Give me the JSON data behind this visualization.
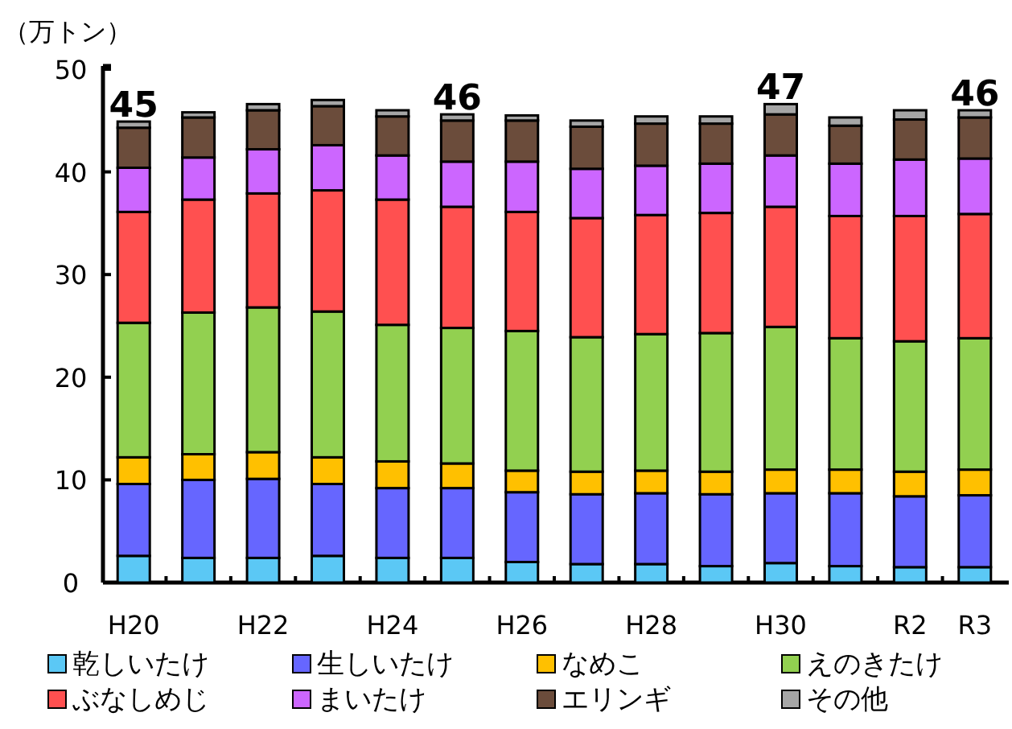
{
  "chart_data": {
    "type": "bar",
    "stacked": true,
    "ylabel": "（万トン）",
    "categories": [
      "H20",
      null,
      "H22",
      null,
      "H24",
      null,
      "H26",
      null,
      "H28",
      null,
      "H30",
      null,
      "R2",
      "R3"
    ],
    "series": [
      {
        "name": "乾しいたけ",
        "color": "#5bc8f5",
        "values": [
          2.6,
          2.4,
          2.4,
          2.6,
          2.4,
          2.4,
          2.0,
          1.8,
          1.8,
          1.6,
          1.9,
          1.6,
          1.5,
          1.5
        ]
      },
      {
        "name": "生しいたけ",
        "color": "#6666ff",
        "values": [
          7.0,
          7.6,
          7.7,
          7.0,
          6.8,
          6.8,
          6.8,
          6.8,
          6.9,
          7.0,
          6.8,
          7.1,
          6.9,
          7.0
        ]
      },
      {
        "name": "なめこ",
        "color": "#ffc000",
        "values": [
          2.6,
          2.5,
          2.6,
          2.6,
          2.6,
          2.4,
          2.1,
          2.2,
          2.2,
          2.2,
          2.3,
          2.3,
          2.4,
          2.5
        ]
      },
      {
        "name": "えのきたけ",
        "color": "#92d050",
        "values": [
          13.1,
          13.8,
          14.1,
          14.2,
          13.3,
          13.2,
          13.6,
          13.1,
          13.3,
          13.5,
          13.9,
          12.8,
          12.7,
          12.8
        ]
      },
      {
        "name": "ぶなしめじ",
        "color": "#ff5050",
        "values": [
          10.8,
          11.0,
          11.1,
          11.8,
          12.2,
          11.8,
          11.6,
          11.6,
          11.6,
          11.7,
          11.7,
          11.9,
          12.2,
          12.1
        ]
      },
      {
        "name": "まいたけ",
        "color": "#cc66ff",
        "values": [
          4.3,
          4.1,
          4.3,
          4.4,
          4.3,
          4.4,
          4.9,
          4.8,
          4.8,
          4.8,
          5.0,
          5.1,
          5.5,
          5.4
        ]
      },
      {
        "name": "エリンギ",
        "color": "#6b4c3b",
        "values": [
          3.9,
          3.9,
          3.8,
          3.8,
          3.8,
          4.0,
          4.0,
          4.1,
          4.1,
          3.9,
          4.0,
          3.7,
          3.9,
          4.0
        ]
      },
      {
        "name": "その他",
        "color": "#a6a6a6",
        "values": [
          0.6,
          0.5,
          0.6,
          0.6,
          0.6,
          0.6,
          0.5,
          0.6,
          0.7,
          0.7,
          1.0,
          0.8,
          0.9,
          0.7
        ]
      }
    ],
    "totals": [
      "45",
      null,
      null,
      null,
      null,
      "46",
      null,
      null,
      null,
      null,
      "47",
      null,
      null,
      "46"
    ],
    "ylim": [
      0,
      50
    ],
    "yticks": [
      0,
      10,
      20,
      30,
      40,
      50
    ],
    "grid": false,
    "legend": "bottom"
  }
}
